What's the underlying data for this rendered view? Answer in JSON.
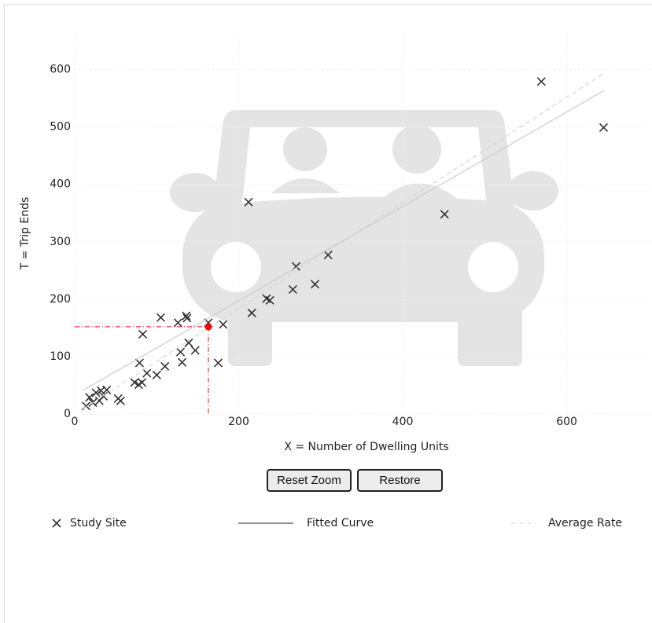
{
  "chart_data": {
    "type": "scatter",
    "x_label": "X = Number of Dwelling Units",
    "y_label": "T = Trip Ends",
    "xlim": [
      0,
      704
    ],
    "ylim": [
      0,
      665
    ],
    "xticks": [
      0,
      200,
      400,
      600
    ],
    "yticks": [
      0,
      100,
      200,
      300,
      400,
      500,
      600
    ],
    "grid": true,
    "series": [
      {
        "name": "Study Site",
        "color": "#333333",
        "kind": "marker",
        "x": [
          14,
          18,
          22,
          26,
          30,
          32,
          35,
          39,
          53,
          56,
          73,
          78,
          82,
          79,
          83,
          88,
          100,
          110,
          105,
          129,
          131,
          126,
          136,
          137,
          139,
          147,
          163,
          175,
          181,
          212,
          216,
          234,
          238,
          266,
          270,
          293,
          309,
          451,
          569,
          645
        ],
        "values": [
          14,
          29,
          20,
          37,
          23,
          41,
          31,
          42,
          27,
          23,
          55,
          51,
          55,
          89,
          139,
          71,
          68,
          83,
          168,
          108,
          90,
          159,
          171,
          167,
          124,
          111,
          159,
          89,
          156,
          369,
          176,
          201,
          198,
          217,
          257,
          226,
          277,
          348,
          579,
          499
        ]
      },
      {
        "name": "Fitted Curve",
        "color": "#cccccc",
        "kind": "solid",
        "x": [
          10,
          645
        ],
        "values": [
          41,
          563
        ]
      },
      {
        "name": "Average Rate",
        "color": "#d6d6d6",
        "kind": "dashed",
        "x": [
          10,
          645
        ],
        "values": [
          9,
          593
        ]
      }
    ],
    "highlight": {
      "x": 163,
      "y": 152,
      "color": "#ff0000"
    },
    "buttons": [
      "Reset Zoom",
      "Restore"
    ]
  }
}
